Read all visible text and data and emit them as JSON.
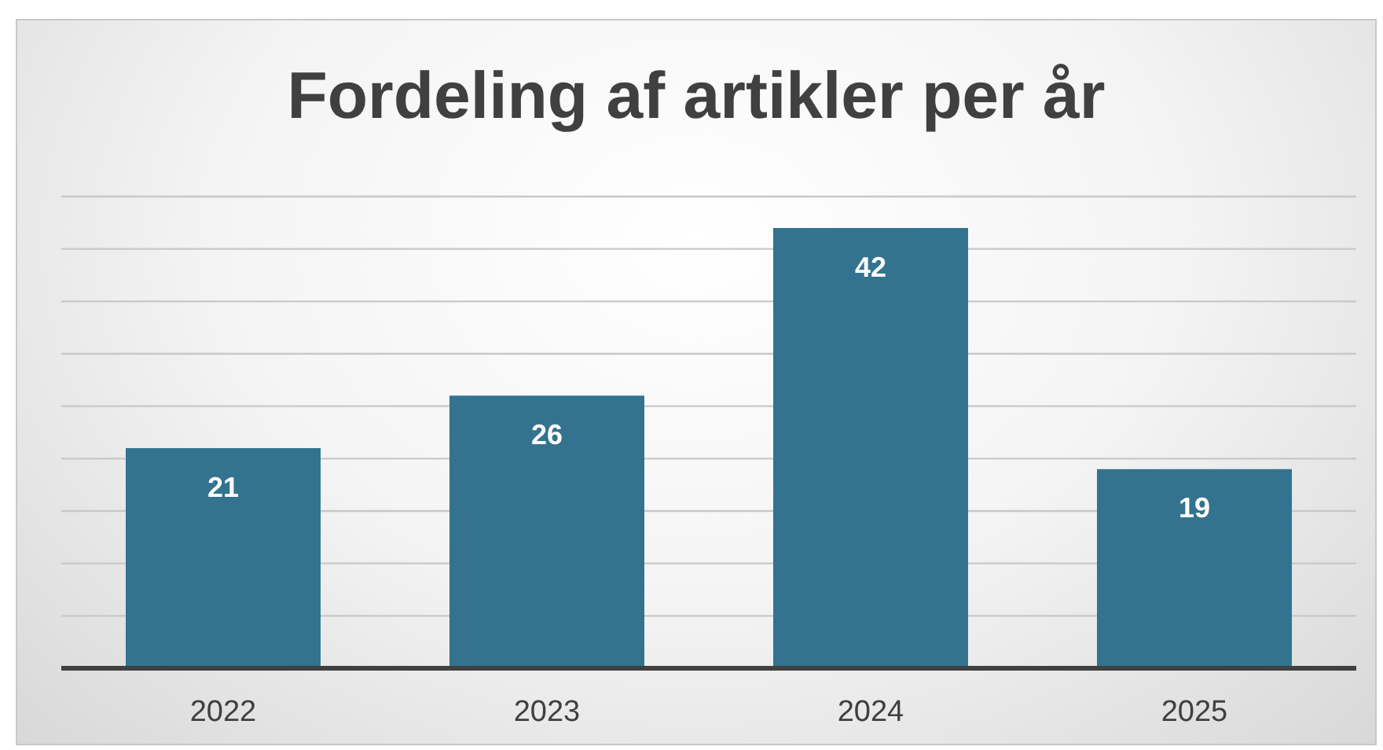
{
  "chart_data": {
    "type": "bar",
    "title": "Fordeling af artikler per år",
    "categories": [
      "2022",
      "2023",
      "2024",
      "2025"
    ],
    "values": [
      21,
      26,
      42,
      19
    ],
    "color": "#33738f",
    "ylim": [
      0,
      45
    ],
    "grid": "y",
    "tick_labels": "x",
    "data_labels": true
  }
}
